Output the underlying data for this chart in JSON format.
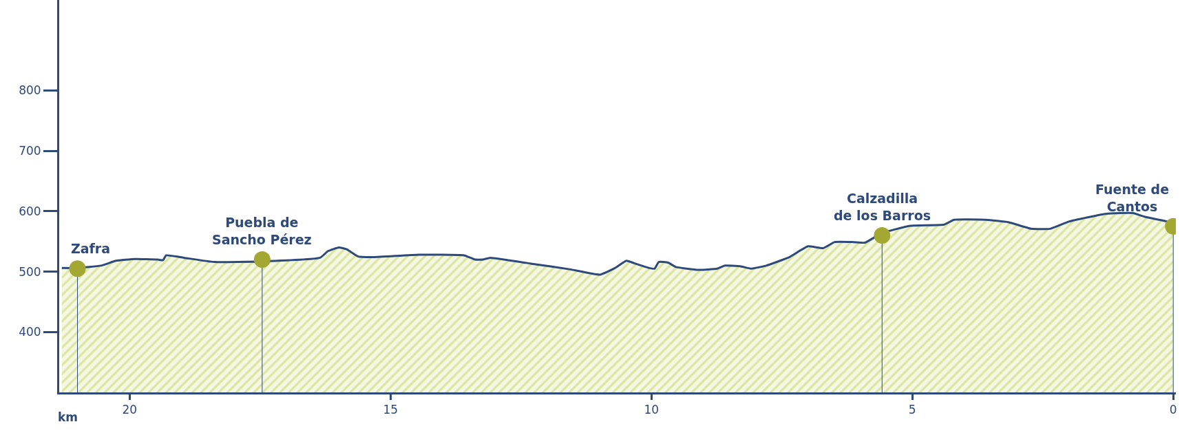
{
  "chart_data": {
    "type": "area",
    "xlabel": "km",
    "xlim": [
      21.35,
      -0.05
    ],
    "ylim": [
      300,
      950
    ],
    "xticks": [
      20,
      15,
      10,
      5,
      0
    ],
    "yticks": [
      400,
      500,
      600,
      700,
      800
    ],
    "legend": false,
    "series": [
      {
        "color": "#2d4a7a",
        "x": [
          21.3,
          21.0,
          20.55,
          20.26,
          19.9,
          19.46,
          19.36,
          19.3,
          18.96,
          18.38,
          17.46,
          16.35,
          16.2,
          15.99,
          15.84,
          15.62,
          15.33,
          14.46,
          13.59,
          13.38,
          13.23,
          13.09,
          12.29,
          11.57,
          10.99,
          10.7,
          10.48,
          10.33,
          10.04,
          9.94,
          9.86,
          9.68,
          9.54,
          9.1,
          8.74,
          8.59,
          8.3,
          8.09,
          7.8,
          7.36,
          7.0,
          6.71,
          6.49,
          6.13,
          5.91,
          5.58,
          5.04,
          4.39,
          4.2,
          3.59,
          3.16,
          2.72,
          2.36,
          2.0,
          1.28,
          0.77,
          0.55,
          0
        ],
        "values": [
          506,
          506,
          510,
          518,
          521,
          520,
          519,
          527,
          523,
          516,
          517,
          523,
          534,
          540,
          537,
          525,
          524,
          528,
          527,
          520,
          520,
          523,
          513,
          504,
          495,
          506,
          518,
          514,
          506,
          505,
          516,
          515,
          508,
          503,
          505,
          510,
          509,
          505,
          510,
          524,
          542,
          539,
          549,
          549,
          548,
          564,
          576,
          578,
          586,
          586,
          582,
          571,
          571,
          583,
          596,
          597,
          591,
          581
        ]
      },
      {
        "type": "lollipop",
        "color": "#a3a832",
        "marker": "circle",
        "x": [
          21.0,
          17.46,
          5.58,
          0
        ],
        "values": [
          505,
          520,
          560,
          575
        ]
      }
    ],
    "annotations": [
      {
        "text": "Zafra",
        "x": 21.0,
        "y": 505
      },
      {
        "text": "Puebla de\nSancho Pérez",
        "x": 17.46,
        "y": 520
      },
      {
        "text": "Calzadilla\nde los Barros",
        "x": 5.58,
        "y": 560
      },
      {
        "text": "Fuente de\nCantos",
        "x": 0,
        "y": 575
      }
    ]
  }
}
